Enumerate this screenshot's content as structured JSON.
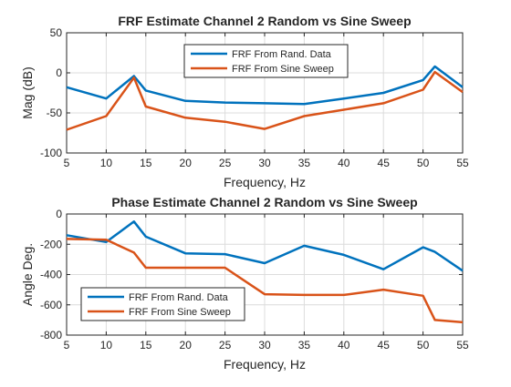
{
  "colors": {
    "series1": "#0072BD",
    "series2": "#D95319",
    "grid": "#dcdcdc",
    "axis": "#262626"
  },
  "chart_data": [
    {
      "type": "line",
      "title": "FRF Estimate Channel 2 Random vs Sine Sweep",
      "xlabel": "Frequency, Hz",
      "ylabel": "Mag (dB)",
      "xlim": [
        5,
        55
      ],
      "ylim": [
        -100,
        50
      ],
      "xticks": [
        5,
        10,
        15,
        20,
        25,
        30,
        35,
        40,
        45,
        50,
        55
      ],
      "yticks": [
        -100,
        -50,
        0,
        50
      ],
      "grid": true,
      "legend_position": "top-center",
      "series": [
        {
          "name": "FRF From Rand. Data",
          "color": "#0072BD",
          "x": [
            5,
            10,
            13.5,
            15,
            20,
            25,
            30,
            35,
            40,
            45,
            50,
            51.5,
            55
          ],
          "y": [
            -18,
            -32,
            -4,
            -22,
            -35,
            -37,
            -38,
            -39,
            -32,
            -25,
            -9,
            8,
            -18
          ]
        },
        {
          "name": "FRF From Sine Sweep",
          "color": "#D95319",
          "x": [
            5,
            10,
            13.5,
            15,
            20,
            25,
            30,
            35,
            40,
            45,
            50,
            51.5,
            55
          ],
          "y": [
            -71,
            -54,
            -6,
            -42,
            -56,
            -61,
            -70,
            -54,
            -46,
            -38,
            -21,
            1,
            -24
          ]
        }
      ]
    },
    {
      "type": "line",
      "title": "Phase Estimate Channel 2 Random vs Sine Sweep",
      "xlabel": "Frequency, Hz",
      "ylabel": "Angle Deg.",
      "xlim": [
        5,
        55
      ],
      "ylim": [
        -800,
        0
      ],
      "xticks": [
        5,
        10,
        15,
        20,
        25,
        30,
        35,
        40,
        45,
        50,
        55
      ],
      "yticks": [
        -800,
        -600,
        -400,
        -200,
        0
      ],
      "grid": true,
      "legend_position": "bottom-left",
      "series": [
        {
          "name": "FRF From Rand. Data",
          "color": "#0072BD",
          "x": [
            5,
            10,
            13.5,
            15,
            20,
            25,
            30,
            35,
            40,
            45,
            50,
            51.5,
            55
          ],
          "y": [
            -140,
            -185,
            -50,
            -150,
            -260,
            -265,
            -325,
            -210,
            -270,
            -365,
            -220,
            -250,
            -375
          ]
        },
        {
          "name": "FRF From Sine Sweep",
          "color": "#D95319",
          "x": [
            5,
            10,
            13.5,
            15,
            20,
            25,
            30,
            35,
            40,
            45,
            50,
            51.5,
            55
          ],
          "y": [
            -165,
            -170,
            -255,
            -355,
            -355,
            -355,
            -530,
            -535,
            -535,
            -500,
            -540,
            -700,
            -715
          ]
        }
      ]
    }
  ]
}
